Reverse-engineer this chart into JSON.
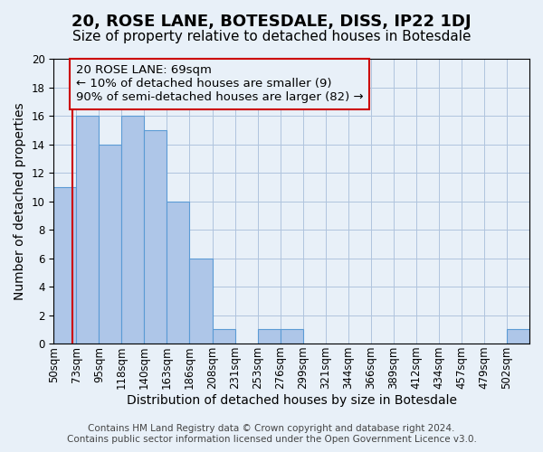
{
  "title": "20, ROSE LANE, BOTESDALE, DISS, IP22 1DJ",
  "subtitle": "Size of property relative to detached houses in Botesdale",
  "xlabel": "Distribution of detached houses by size in Botesdale",
  "ylabel": "Number of detached properties",
  "bin_labels": [
    "50sqm",
    "73sqm",
    "95sqm",
    "118sqm",
    "140sqm",
    "163sqm",
    "186sqm",
    "208sqm",
    "231sqm",
    "253sqm",
    "276sqm",
    "299sqm",
    "321sqm",
    "344sqm",
    "366sqm",
    "389sqm",
    "412sqm",
    "434sqm",
    "457sqm",
    "479sqm",
    "502sqm"
  ],
  "bar_values": [
    11,
    16,
    14,
    16,
    15,
    10,
    6,
    1,
    0,
    1,
    1,
    0,
    0,
    0,
    0,
    0,
    0,
    0,
    0,
    0,
    1
  ],
  "bar_color": "#aec6e8",
  "bar_edgecolor": "#5b9bd5",
  "background_color": "#e8f0f8",
  "grid_color": "#b0c4de",
  "annotation_text": "20 ROSE LANE: 69sqm\n← 10% of detached houses are smaller (9)\n90% of semi-detached houses are larger (82) →",
  "annotation_box_edgecolor": "#cc0000",
  "vline_color": "#cc0000",
  "property_size_sqm": 69,
  "bin_edges_vals": [
    50,
    73,
    95,
    118,
    140,
    163,
    186,
    208,
    231,
    253,
    276,
    299,
    321,
    344,
    366,
    389,
    412,
    434,
    457,
    479,
    502
  ],
  "ylim": [
    0,
    20
  ],
  "footer_line1": "Contains HM Land Registry data © Crown copyright and database right 2024.",
  "footer_line2": "Contains public sector information licensed under the Open Government Licence v3.0.",
  "title_fontsize": 13,
  "subtitle_fontsize": 11,
  "axis_label_fontsize": 10,
  "tick_fontsize": 8.5,
  "annotation_fontsize": 9.5,
  "footer_fontsize": 7.5
}
